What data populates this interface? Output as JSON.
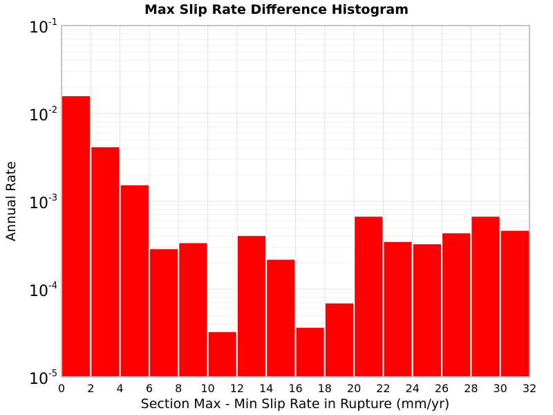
{
  "chart_data": {
    "type": "bar",
    "title": "Max Slip Rate Difference Histogram",
    "xlabel": "Section Max - Min Slip Rate in Rupture (mm/yr)",
    "ylabel": "Annual Rate",
    "xlim": [
      0,
      32
    ],
    "ylim": [
      1e-05,
      0.1
    ],
    "yscale": "log",
    "grid": true,
    "bar_color": "#ff0000",
    "x_ticks": [
      "0",
      "2",
      "4",
      "6",
      "8",
      "10",
      "12",
      "14",
      "16",
      "18",
      "20",
      "22",
      "24",
      "26",
      "28",
      "30",
      "32"
    ],
    "y_ticks": [
      {
        "base": "10",
        "exponent": "-5"
      },
      {
        "base": "10",
        "exponent": "-4"
      },
      {
        "base": "10",
        "exponent": "-3"
      },
      {
        "base": "10",
        "exponent": "-2"
      },
      {
        "base": "10",
        "exponent": "-1"
      }
    ],
    "bins": [
      {
        "x0": 0,
        "x1": 2,
        "value": 0.016
      },
      {
        "x0": 2,
        "x1": 4,
        "value": 0.0042
      },
      {
        "x0": 4,
        "x1": 6,
        "value": 0.00155
      },
      {
        "x0": 6,
        "x1": 8,
        "value": 0.00029
      },
      {
        "x0": 8,
        "x1": 10,
        "value": 0.00034
      },
      {
        "x0": 10,
        "x1": 12,
        "value": 3.3e-05
      },
      {
        "x0": 12,
        "x1": 14,
        "value": 0.00041
      },
      {
        "x0": 14,
        "x1": 16,
        "value": 0.00022
      },
      {
        "x0": 16,
        "x1": 18,
        "value": 3.7e-05
      },
      {
        "x0": 18,
        "x1": 20,
        "value": 7e-05
      },
      {
        "x0": 20,
        "x1": 22,
        "value": 0.00068
      },
      {
        "x0": 22,
        "x1": 24,
        "value": 0.00035
      },
      {
        "x0": 24,
        "x1": 26,
        "value": 0.00033
      },
      {
        "x0": 26,
        "x1": 28,
        "value": 0.00044
      },
      {
        "x0": 28,
        "x1": 30,
        "value": 0.00068
      },
      {
        "x0": 30,
        "x1": 32,
        "value": 0.00047
      }
    ]
  }
}
